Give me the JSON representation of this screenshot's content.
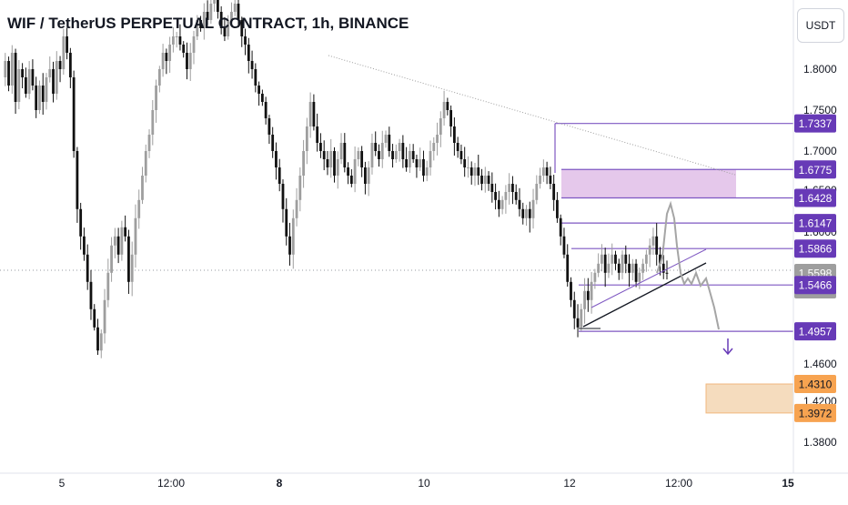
{
  "title": "WIF / TetherUS PERPETUAL CONTRACT, 1h, BINANCE",
  "currency_button": "USDT",
  "countdown": "25:24",
  "colors": {
    "bull": "#9e9e9e",
    "bear": "#111111",
    "level_line": "#7e57c2",
    "label_purple": "#673ab7",
    "label_gray": "#9e9e9e",
    "label_orange": "#f7a350",
    "zone_purple": "#e1bee7",
    "zone_orange": "#f5d9b8",
    "arrow": "#673ab7"
  },
  "chart_data": {
    "type": "candlestick",
    "y_axis_ticks": [
      "1.8000",
      "1.7500",
      "1.7000",
      "1.6500",
      "1.6000",
      "1.4600",
      "1.4200",
      "1.3800"
    ],
    "x_axis_ticks": [
      {
        "label": "5",
        "bold": false
      },
      {
        "label": "12:00",
        "bold": false
      },
      {
        "label": "8",
        "bold": true
      },
      {
        "label": "10",
        "bold": false
      },
      {
        "label": "12",
        "bold": false
      },
      {
        "label": "12:00",
        "bold": false
      },
      {
        "label": "15",
        "bold": true
      }
    ],
    "price_labels": [
      {
        "value": "1.7337",
        "style": "purple"
      },
      {
        "value": "1.6775",
        "style": "purple"
      },
      {
        "value": "1.6428",
        "style": "purple"
      },
      {
        "value": "1.6147",
        "style": "purple"
      },
      {
        "value": "1.5866",
        "style": "purple"
      },
      {
        "value": "1.5598",
        "style": "gray"
      },
      {
        "value": "1.5466",
        "style": "purple"
      },
      {
        "value": "1.4957",
        "style": "purple"
      },
      {
        "value": "1.4310",
        "style": "orange"
      },
      {
        "value": "1.3972",
        "style": "orange"
      }
    ],
    "zones": [
      {
        "from": 1.6428,
        "to": 1.6775,
        "color": "purple"
      },
      {
        "from": 1.3972,
        "to": 1.431,
        "color": "orange"
      }
    ],
    "horizontal_levels": [
      1.7337,
      1.6147,
      1.5866,
      1.5466,
      1.4957
    ],
    "current_price": 1.5598,
    "trendlines": [
      {
        "name": "descending-resistance",
        "from": [
          1.81
        ],
        "to": [
          1.665
        ],
        "style": "dotted"
      },
      {
        "name": "ascending-support",
        "from": [
          1.4957
        ],
        "to": [
          1.572
        ],
        "style": "solid"
      }
    ],
    "projection_path": "rally toward 1.6400, then decline below 1.4957",
    "candles_close_path": [
      1.79,
      1.81,
      1.78,
      1.82,
      1.76,
      1.8,
      1.79,
      1.77,
      1.8,
      1.78,
      1.75,
      1.78,
      1.76,
      1.79,
      1.8,
      1.77,
      1.81,
      1.8,
      1.84,
      1.82,
      1.79,
      1.7,
      1.63,
      1.6,
      1.58,
      1.55,
      1.52,
      1.5,
      1.47,
      1.49,
      1.53,
      1.56,
      1.59,
      1.6,
      1.58,
      1.61,
      1.6,
      1.55,
      1.58,
      1.62,
      1.64,
      1.67,
      1.7,
      1.72,
      1.75,
      1.78,
      1.8,
      1.82,
      1.81,
      1.83,
      1.84,
      1.84,
      1.83,
      1.82,
      1.8,
      1.82,
      1.84,
      1.86,
      1.85,
      1.87,
      1.86,
      1.88,
      1.89,
      1.87,
      1.85,
      1.84,
      1.86,
      1.87,
      1.88,
      1.86,
      1.84,
      1.83,
      1.81,
      1.8,
      1.78,
      1.77,
      1.76,
      1.74,
      1.72,
      1.7,
      1.68,
      1.66,
      1.63,
      1.6,
      1.58,
      1.62,
      1.64,
      1.67,
      1.7,
      1.73,
      1.76,
      1.73,
      1.71,
      1.7,
      1.69,
      1.68,
      1.7,
      1.67,
      1.69,
      1.71,
      1.68,
      1.67,
      1.66,
      1.69,
      1.7,
      1.68,
      1.66,
      1.68,
      1.71,
      1.7,
      1.69,
      1.71,
      1.72,
      1.7,
      1.69,
      1.7,
      1.71,
      1.69,
      1.68,
      1.7,
      1.69,
      1.68,
      1.69,
      1.67,
      1.68,
      1.7,
      1.71,
      1.72,
      1.74,
      1.76,
      1.75,
      1.73,
      1.71,
      1.7,
      1.69,
      1.68,
      1.68,
      1.67,
      1.68,
      1.67,
      1.66,
      1.67,
      1.66,
      1.65,
      1.64,
      1.63,
      1.64,
      1.65,
      1.66,
      1.65,
      1.64,
      1.63,
      1.62,
      1.63,
      1.62,
      1.64,
      1.66,
      1.67,
      1.68,
      1.67,
      1.66,
      1.64,
      1.62,
      1.6,
      1.58,
      1.55,
      1.53,
      1.51,
      1.5,
      1.52,
      1.54,
      1.53,
      1.55,
      1.56,
      1.57,
      1.58,
      1.56,
      1.57,
      1.58,
      1.57,
      1.56,
      1.58,
      1.57,
      1.56,
      1.57,
      1.55,
      1.56,
      1.57,
      1.58,
      1.59,
      1.6,
      1.58,
      1.57,
      1.56,
      1.5598
    ]
  }
}
